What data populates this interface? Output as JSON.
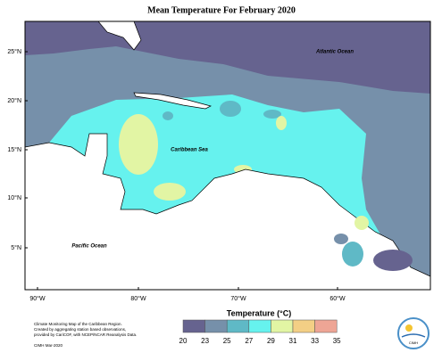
{
  "title": "Mean Temperature For February 2020",
  "map": {
    "labels": [
      "Atlantic Ocean",
      "Caribbean Sea",
      "Pacific Ocean"
    ],
    "lat_ticks": [
      "25°N",
      "20°N",
      "15°N",
      "10°N",
      "5°N"
    ],
    "lon_ticks": [
      "90°W",
      "80°W",
      "70°W",
      "60°W"
    ]
  },
  "legend": {
    "title": "Temperature (°C)",
    "ticks": [
      20,
      23,
      25,
      27,
      29,
      31,
      33,
      35
    ],
    "colors": [
      "#66638f",
      "#7690aa",
      "#5fb9c6",
      "#66f2ee",
      "#e2f5a4",
      "#f3cf85",
      "#eea595"
    ]
  },
  "footnote": [
    "Climate Monitoring Map of the Caribbean Region.",
    "Created by aggregating station based observations,",
    "provided by CariCOF, with NCEP/NCAR Reanalysis Data.",
    "CIMH Mar-2020"
  ],
  "logo": "CIMH"
}
